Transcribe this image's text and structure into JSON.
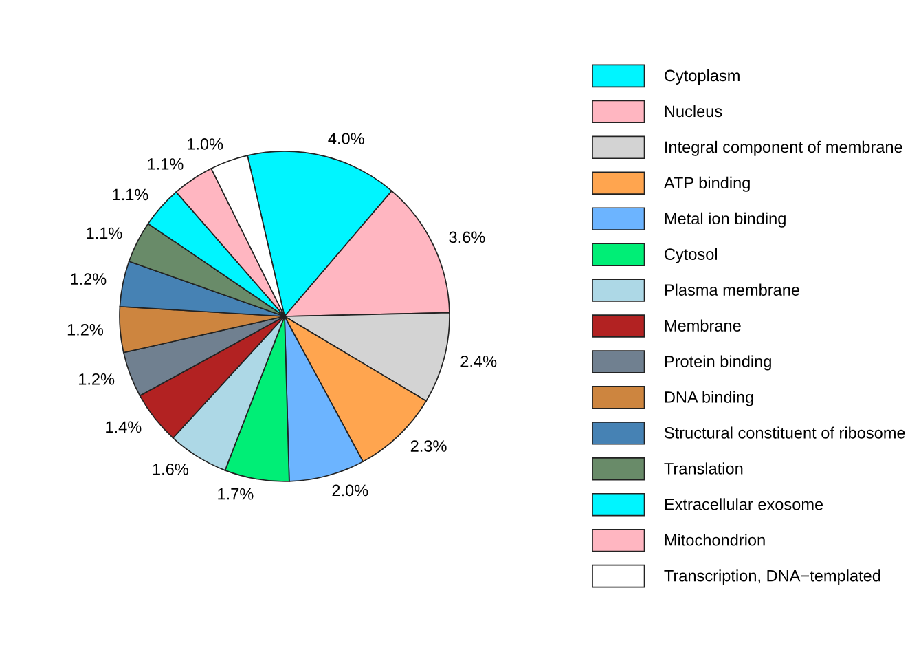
{
  "chart_data": {
    "type": "pie",
    "categories": [
      "Cytoplasm",
      "Nucleus",
      "Integral component of membrane",
      "ATP binding",
      "Metal ion binding",
      "Cytosol",
      "Plasma membrane",
      "Membrane",
      "Protein binding",
      "DNA binding",
      "Structural constituent of ribosome",
      "Translation",
      "Extracellular exosome",
      "Mitochondrion",
      "Transcription, DNA−templated"
    ],
    "values": [
      4.0,
      3.6,
      2.4,
      2.3,
      2.0,
      1.7,
      1.6,
      1.4,
      1.2,
      1.2,
      1.2,
      1.1,
      1.1,
      1.1,
      1.0
    ],
    "value_labels": [
      "4.0%",
      "3.6%",
      "2.4%",
      "2.3%",
      "2.0%",
      "1.7%",
      "1.6%",
      "1.4%",
      "1.2%",
      "1.2%",
      "1.2%",
      "1.1%",
      "1.1%",
      "1.1%",
      "1.0%"
    ],
    "colors": [
      "#00f5ff",
      "#ffb6c1",
      "#d3d3d3",
      "#ffa54f",
      "#6cb4ff",
      "#00ee76",
      "#add8e6",
      "#b22222",
      "#708090",
      "#cd853f",
      "#4682b4",
      "#698b69",
      "#00f5ff",
      "#ffb6c1",
      "#ffffff"
    ],
    "legend": "right"
  }
}
